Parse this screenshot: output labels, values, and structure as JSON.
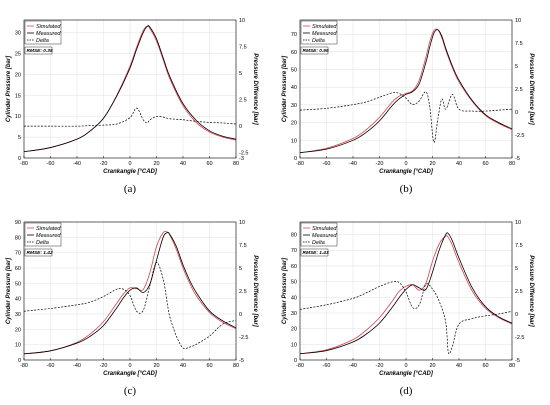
{
  "chart_data": [
    {
      "type": "line",
      "caption": "(a)",
      "xlabel": "Crankangle [°CAD]",
      "ylabel": "Cylinder Pressure [bar]",
      "y2label": "Pressure Difference [bar]",
      "xlim": [
        -80,
        80
      ],
      "ylim": [
        0,
        33
      ],
      "y2lim": [
        -3,
        10
      ],
      "xticks": [
        -80,
        -60,
        -40,
        -20,
        0,
        20,
        40,
        60,
        80
      ],
      "yticks": [
        0,
        5,
        10,
        15,
        20,
        25,
        30
      ],
      "y2ticks": [
        -3,
        -2.5,
        0,
        2.5,
        5,
        7.5,
        10
      ],
      "rmse": "RMSE: 0.35",
      "legend": [
        "Simulated",
        "Measured",
        "Delta"
      ],
      "legend_position": "top-left",
      "grid": true,
      "x": [
        -80,
        -60,
        -40,
        -30,
        -20,
        -10,
        0,
        5,
        10,
        13,
        15,
        20,
        25,
        30,
        40,
        50,
        60,
        70,
        80
      ],
      "series": [
        {
          "name": "Simulated",
          "axis": "left",
          "values": [
            1.5,
            2.5,
            4.5,
            6.5,
            9.5,
            15,
            22,
            26.5,
            30.5,
            31.5,
            31,
            28,
            23.5,
            19,
            12.5,
            8.5,
            6.2,
            5,
            4.3
          ]
        },
        {
          "name": "Measured",
          "axis": "left",
          "values": [
            1.5,
            2.5,
            4.5,
            6.5,
            9.5,
            14.8,
            21.5,
            26,
            30,
            31.5,
            31.3,
            28.5,
            24,
            19.5,
            13,
            9,
            6.5,
            5.2,
            4.5
          ]
        },
        {
          "name": "Delta",
          "axis": "right",
          "values": [
            0,
            0,
            0,
            0.05,
            0.1,
            0.2,
            0.8,
            1.7,
            0.6,
            0.3,
            0.6,
            0.9,
            0.85,
            0.7,
            0.6,
            0.45,
            0.35,
            0.3,
            0.2
          ]
        }
      ]
    },
    {
      "type": "line",
      "caption": "(b)",
      "xlabel": "Crankangle [°CAD]",
      "ylabel": "Cylinder Pressure [bar]",
      "y2label": "Pressure Difference [bar]",
      "xlim": [
        -80,
        80
      ],
      "ylim": [
        0,
        78
      ],
      "y2lim": [
        -5,
        10
      ],
      "xticks": [
        -80,
        -60,
        -40,
        -20,
        0,
        20,
        40,
        60,
        80
      ],
      "yticks": [
        0,
        10,
        20,
        30,
        40,
        50,
        60,
        70
      ],
      "y2ticks": [
        -5,
        -2.5,
        0,
        2.5,
        5,
        7.5,
        10
      ],
      "rmse": "RMSE: 0.95",
      "legend": [
        "Simulated",
        "Measured",
        "Delta"
      ],
      "legend_position": "top-left",
      "grid": true,
      "x": [
        -80,
        -60,
        -40,
        -30,
        -20,
        -10,
        -5,
        0,
        5,
        10,
        15,
        18,
        21,
        24,
        27,
        30,
        35,
        40,
        50,
        60,
        70,
        80
      ],
      "series": [
        {
          "name": "Simulated",
          "axis": "left",
          "values": [
            3,
            5.5,
            11,
            16,
            23,
            32,
            35,
            36.5,
            38,
            44,
            57,
            66,
            72,
            72.5,
            68,
            61,
            51,
            43,
            32,
            24,
            19.5,
            16
          ]
        },
        {
          "name": "Measured",
          "axis": "left",
          "values": [
            3,
            5,
            10,
            14.5,
            21,
            30,
            33.5,
            36,
            37.5,
            42,
            54,
            63,
            70.5,
            72.5,
            69,
            62,
            52,
            44,
            32.5,
            24.5,
            20,
            16.5
          ]
        },
        {
          "name": "Delta",
          "axis": "right",
          "values": [
            0.2,
            0.4,
            0.8,
            1.1,
            1.6,
            2.1,
            2.0,
            1.5,
            0.8,
            1.2,
            2.2,
            0.5,
            -3.3,
            -0.8,
            1.4,
            0.3,
            1.9,
            0.3,
            0.1,
            0.1,
            0.2,
            0.3
          ]
        }
      ]
    },
    {
      "type": "line",
      "caption": "(c)",
      "xlabel": "Crankangle [°CAD]",
      "ylabel": "Cylinder Pressure [bar]",
      "y2label": "Pressure Difference [bar]",
      "xlim": [
        -80,
        80
      ],
      "ylim": [
        0,
        90
      ],
      "y2lim": [
        -5,
        10
      ],
      "xticks": [
        -80,
        -60,
        -40,
        -20,
        0,
        20,
        40,
        60,
        80
      ],
      "yticks": [
        0,
        10,
        20,
        30,
        40,
        50,
        60,
        70,
        80,
        90
      ],
      "y2ticks": [
        -5,
        -2.5,
        0,
        2.5,
        5,
        7.5,
        10
      ],
      "rmse": "RMSE: 1.42",
      "legend": [
        "Simulated",
        "Measured",
        "Delta"
      ],
      "legend_position": "top-left",
      "grid": true,
      "x": [
        -80,
        -60,
        -40,
        -30,
        -20,
        -10,
        -5,
        0,
        5,
        10,
        15,
        20,
        25,
        28,
        30,
        35,
        40,
        45,
        50,
        60,
        70,
        80
      ],
      "series": [
        {
          "name": "Simulated",
          "axis": "left",
          "values": [
            4,
            6,
            11.5,
            17,
            25,
            37,
            43,
            47,
            46.5,
            46,
            57,
            74,
            83,
            83.5,
            81.5,
            72,
            60,
            50,
            42,
            31,
            24.5,
            20.5
          ]
        },
        {
          "name": "Measured",
          "axis": "left",
          "values": [
            4,
            6,
            11,
            15.5,
            22.5,
            34,
            40.5,
            45.5,
            47,
            44,
            49.5,
            65,
            80,
            83,
            82,
            74,
            62,
            52,
            44,
            32,
            25.5,
            21
          ]
        },
        {
          "name": "Delta",
          "axis": "right",
          "values": [
            0.3,
            0.6,
            1.0,
            1.3,
            1.9,
            2.7,
            2.7,
            2.0,
            0.3,
            0.4,
            3.1,
            5.6,
            3.8,
            1.3,
            -0.3,
            -2.4,
            -3.7,
            -3.6,
            -3.3,
            -2.4,
            -1.1,
            -0.7
          ]
        }
      ]
    },
    {
      "type": "line",
      "caption": "(d)",
      "xlabel": "Crankangle [°CAD]",
      "ylabel": "Cylinder Pressure [bar]",
      "y2label": "Pressure Difference [bar]",
      "xlim": [
        -80,
        80
      ],
      "ylim": [
        0,
        88
      ],
      "y2lim": [
        -5,
        10
      ],
      "xticks": [
        -80,
        -60,
        -40,
        -20,
        0,
        20,
        40,
        60,
        80
      ],
      "yticks": [
        0,
        10,
        20,
        30,
        40,
        50,
        60,
        70,
        80
      ],
      "y2ticks": [
        -5,
        -2.5,
        0,
        2.5,
        5,
        7.5,
        10
      ],
      "rmse": "RMSE: 1.43",
      "legend": [
        "Simulated",
        "Measured",
        "Delta"
      ],
      "legend_position": "top-left",
      "grid": true,
      "x": [
        -80,
        -60,
        -40,
        -30,
        -20,
        -10,
        -5,
        0,
        5,
        10,
        15,
        20,
        25,
        30,
        32,
        35,
        40,
        50,
        60,
        70,
        80
      ],
      "series": [
        {
          "name": "Simulated",
          "axis": "left",
          "values": [
            4,
            6.5,
            13,
            19,
            27,
            38,
            44,
            47,
            48,
            44.5,
            49,
            63,
            74,
            79,
            78,
            73,
            62,
            44,
            33,
            27,
            23
          ]
        },
        {
          "name": "Measured",
          "axis": "left",
          "values": [
            4,
            6,
            11.5,
            16.5,
            23.5,
            34,
            40,
            45,
            48,
            46,
            45,
            56,
            70,
            80,
            80.5,
            76,
            65,
            46,
            34,
            27.5,
            23.5
          ]
        },
        {
          "name": "Delta",
          "axis": "right",
          "values": [
            0.5,
            1.0,
            1.7,
            2.3,
            3.0,
            3.5,
            3.4,
            2.4,
            0.7,
            1.0,
            3.2,
            2.7,
            1.4,
            -0.9,
            -4.2,
            -3.5,
            -1.1,
            -0.5,
            -0.2,
            0.0,
            0.3
          ]
        }
      ]
    }
  ]
}
